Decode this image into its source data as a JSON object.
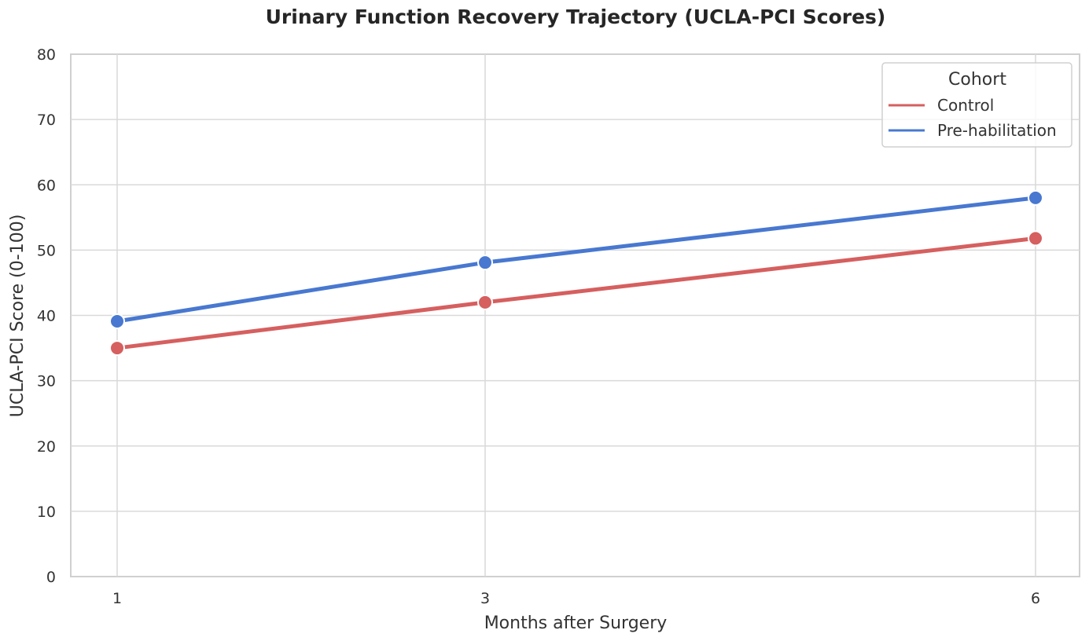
{
  "chart_data": {
    "type": "line",
    "title": "Urinary Function Recovery Trajectory (UCLA-PCI Scores)",
    "xlabel": "Months after Surgery",
    "ylabel": "UCLA-PCI Score (0-100)",
    "x": [
      1,
      3,
      6
    ],
    "x_tick_labels": [
      "1",
      "3",
      "6"
    ],
    "ylim": [
      0,
      80
    ],
    "y_ticks": [
      0,
      10,
      20,
      30,
      40,
      50,
      60,
      70,
      80
    ],
    "grid": true,
    "legend": {
      "title": "Cohort",
      "placement": "top-right"
    },
    "series": [
      {
        "name": "Control",
        "values": [
          35,
          42,
          51.8
        ],
        "color": "#d65f5f"
      },
      {
        "name": "Pre-habilitation",
        "values": [
          39.1,
          48.1,
          58
        ],
        "color": "#4878d0"
      }
    ]
  }
}
